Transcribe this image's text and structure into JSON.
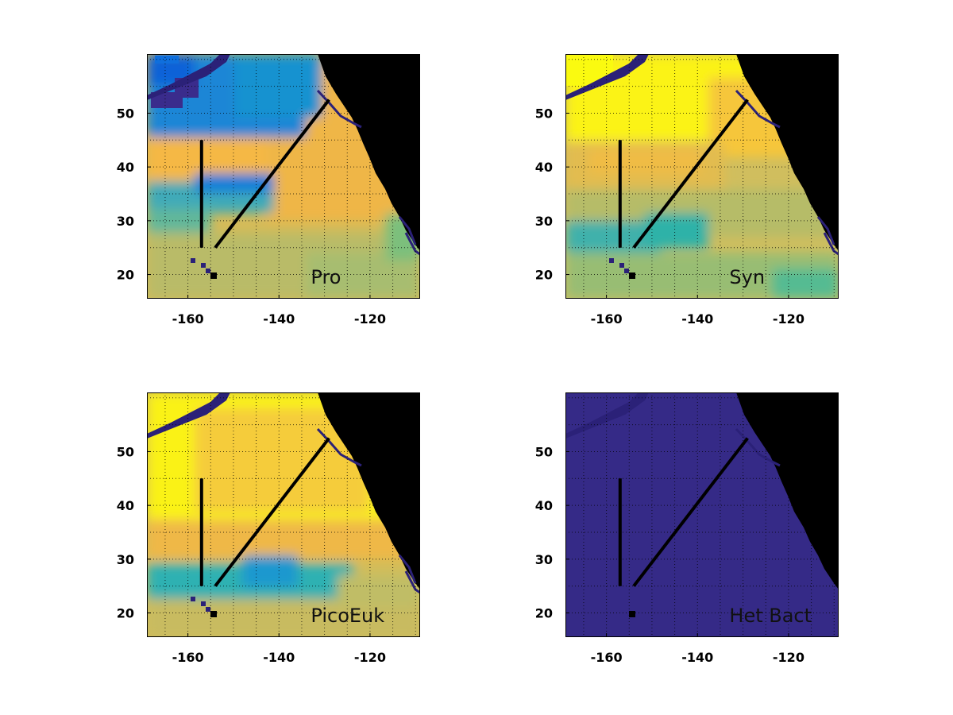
{
  "figure": {
    "x_ticks": [
      -160,
      -140,
      -120
    ],
    "y_ticks": [
      20,
      30,
      40,
      50
    ],
    "x_range": [
      -169,
      -109
    ],
    "y_range": [
      15.5,
      61
    ],
    "grid": "dotted",
    "transects": [
      {
        "name": "vertical",
        "lon": [
          -157,
          -157
        ],
        "lat": [
          45,
          25
        ]
      },
      {
        "name": "diagonal",
        "lon": [
          -154,
          -129
        ],
        "lat": [
          25,
          52.5
        ]
      }
    ],
    "colors": {
      "land": "#000000",
      "coast_edge": "#3b2f8a",
      "transect": "#000000",
      "frame": "#000000"
    },
    "colormap": [
      "#352a87",
      "#0f5cdd",
      "#1481d6",
      "#06a4ca",
      "#2eb7a4",
      "#87bf77",
      "#d1bb59",
      "#fec832",
      "#f9fb0e"
    ]
  },
  "panels": [
    {
      "label": "Pro",
      "palette": "pro"
    },
    {
      "label": "Syn",
      "palette": "syn"
    },
    {
      "label": "PicoEuk",
      "palette": "pico"
    },
    {
      "label": "Het Bact",
      "palette": "het"
    }
  ]
}
